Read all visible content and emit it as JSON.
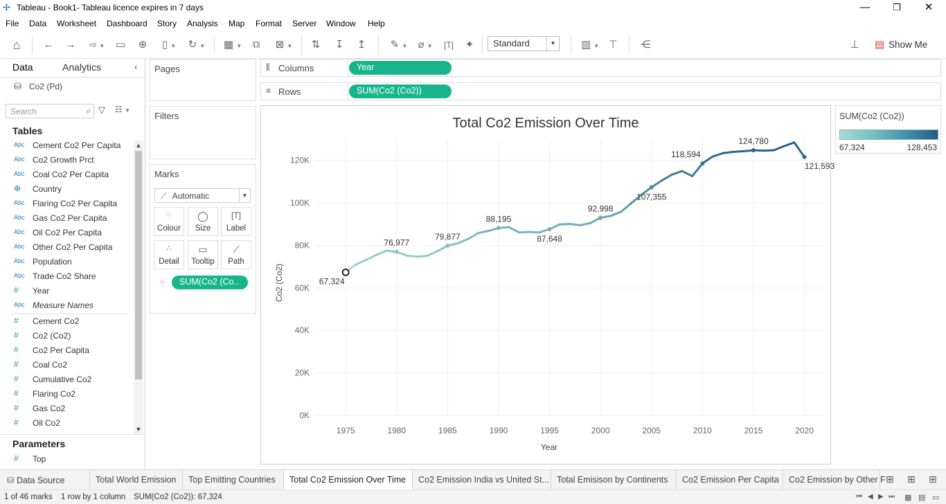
{
  "window": {
    "title": "Tableau - Book1- Tableau licence expires in 7 days",
    "minimize": "—",
    "restore": "❐",
    "close": "✕"
  },
  "menu": [
    "File",
    "Data",
    "Worksheet",
    "Dashboard",
    "Story",
    "Analysis",
    "Map",
    "Format",
    "Server",
    "Window",
    "Help"
  ],
  "toolbar": {
    "view_size": "Standard",
    "show_me": "Show Me"
  },
  "data_pane": {
    "tabs": [
      "Data",
      "Analytics"
    ],
    "datasource": "Co2 (Pd)",
    "search_placeholder": "Search",
    "tables_heading": "Tables",
    "dimensions": [
      {
        "type": "Abc",
        "name": "Cement Co2 Per Capita"
      },
      {
        "type": "Abc",
        "name": "Co2 Growth Prct"
      },
      {
        "type": "Abc",
        "name": "Coal Co2 Per Capita"
      },
      {
        "type": "globe",
        "name": "Country"
      },
      {
        "type": "Abc",
        "name": "Flaring Co2 Per Capita"
      },
      {
        "type": "Abc",
        "name": "Gas Co2 Per Capita"
      },
      {
        "type": "Abc",
        "name": "Oil Co2 Per Capita"
      },
      {
        "type": "Abc",
        "name": "Other Co2 Per Capita"
      },
      {
        "type": "Abc",
        "name": "Population"
      },
      {
        "type": "Abc",
        "name": "Trade Co2 Share"
      },
      {
        "type": "#",
        "name": "Year"
      },
      {
        "type": "Abc",
        "name": "Measure Names"
      }
    ],
    "measures": [
      "Cement Co2",
      "Co2 (Co2)",
      "Co2 Per Capita",
      "Coal Co2",
      "Cumulative Co2",
      "Flaring Co2",
      "Gas Co2",
      "Oil Co2"
    ],
    "parameters_heading": "Parameters",
    "parameters": [
      "Top"
    ]
  },
  "cards": {
    "pages": "Pages",
    "filters": "Filters",
    "marks": "Marks",
    "mark_type": "Automatic",
    "mark_buttons": [
      "Colour",
      "Size",
      "Label",
      "Detail",
      "Tooltip",
      "Path"
    ],
    "mark_pill": "SUM(Co2 (Co.."
  },
  "shelves": {
    "columns_label": "Columns",
    "columns_pill": "Year",
    "rows_label": "Rows",
    "rows_pill": "SUM(Co2 (Co2))"
  },
  "legend": {
    "title": "SUM(Co2 (Co2))",
    "min": "67,324",
    "max": "128,453"
  },
  "chart_data": {
    "type": "line",
    "title": "Total Co2 Emission Over Time",
    "xlabel": "Year",
    "ylabel": "Co2 (Co2)",
    "ylim": [
      0,
      130000
    ],
    "xlim": [
      1972,
      2022
    ],
    "xticks": [
      1975,
      1980,
      1985,
      1990,
      1995,
      2000,
      2005,
      2010,
      2015,
      2020
    ],
    "yticks": [
      "0K",
      "20K",
      "40K",
      "60K",
      "80K",
      "100K",
      "120K"
    ],
    "x": [
      1975,
      1976,
      1977,
      1978,
      1979,
      1980,
      1981,
      1982,
      1983,
      1984,
      1985,
      1986,
      1987,
      1988,
      1989,
      1990,
      1991,
      1992,
      1993,
      1994,
      1995,
      1996,
      1997,
      1998,
      1999,
      2000,
      2001,
      2002,
      2003,
      2004,
      2005,
      2006,
      2007,
      2008,
      2009,
      2010,
      2011,
      2012,
      2013,
      2014,
      2015,
      2016,
      2017,
      2018,
      2019,
      2020
    ],
    "values": [
      67324,
      71000,
      73200,
      75500,
      77500,
      76977,
      75200,
      74700,
      75100,
      77300,
      79877,
      81000,
      83000,
      85800,
      86800,
      88195,
      88600,
      86100,
      86300,
      86100,
      87648,
      89900,
      90100,
      89500,
      90500,
      92998,
      93900,
      95800,
      99800,
      103800,
      107355,
      110500,
      113300,
      115000,
      112600,
      118594,
      121800,
      123400,
      124000,
      124300,
      124780,
      124600,
      124800,
      126700,
      128453,
      121593
    ],
    "labels": [
      {
        "year": 1975,
        "text": "67,324"
      },
      {
        "year": 1980,
        "text": "76,977"
      },
      {
        "year": 1985,
        "text": "79,877"
      },
      {
        "year": 1990,
        "text": "88,195"
      },
      {
        "year": 1995,
        "text": "87,648"
      },
      {
        "year": 2000,
        "text": "92,998"
      },
      {
        "year": 2005,
        "text": "107,355"
      },
      {
        "year": 2010,
        "text": "118,594"
      },
      {
        "year": 2015,
        "text": "124,780"
      },
      {
        "year": 2020,
        "text": "121,593"
      }
    ],
    "color_min": "#a6dbd6",
    "color_max": "#245c87"
  },
  "sheets": [
    "Data Source",
    "Total World Emission",
    "Top Emitting Countries",
    "Total Co2 Emission Over Time",
    "Co2 Emission India vs United St...",
    "Total Emisison by Continents",
    "Co2 Emission Per Capita",
    "Co2 Emission by Other F"
  ],
  "active_sheet": 3,
  "status": {
    "marks": "1 of 46 marks",
    "dims": "1 row by 1 column",
    "sum": "SUM(Co2 (Co2)): 67,324"
  }
}
